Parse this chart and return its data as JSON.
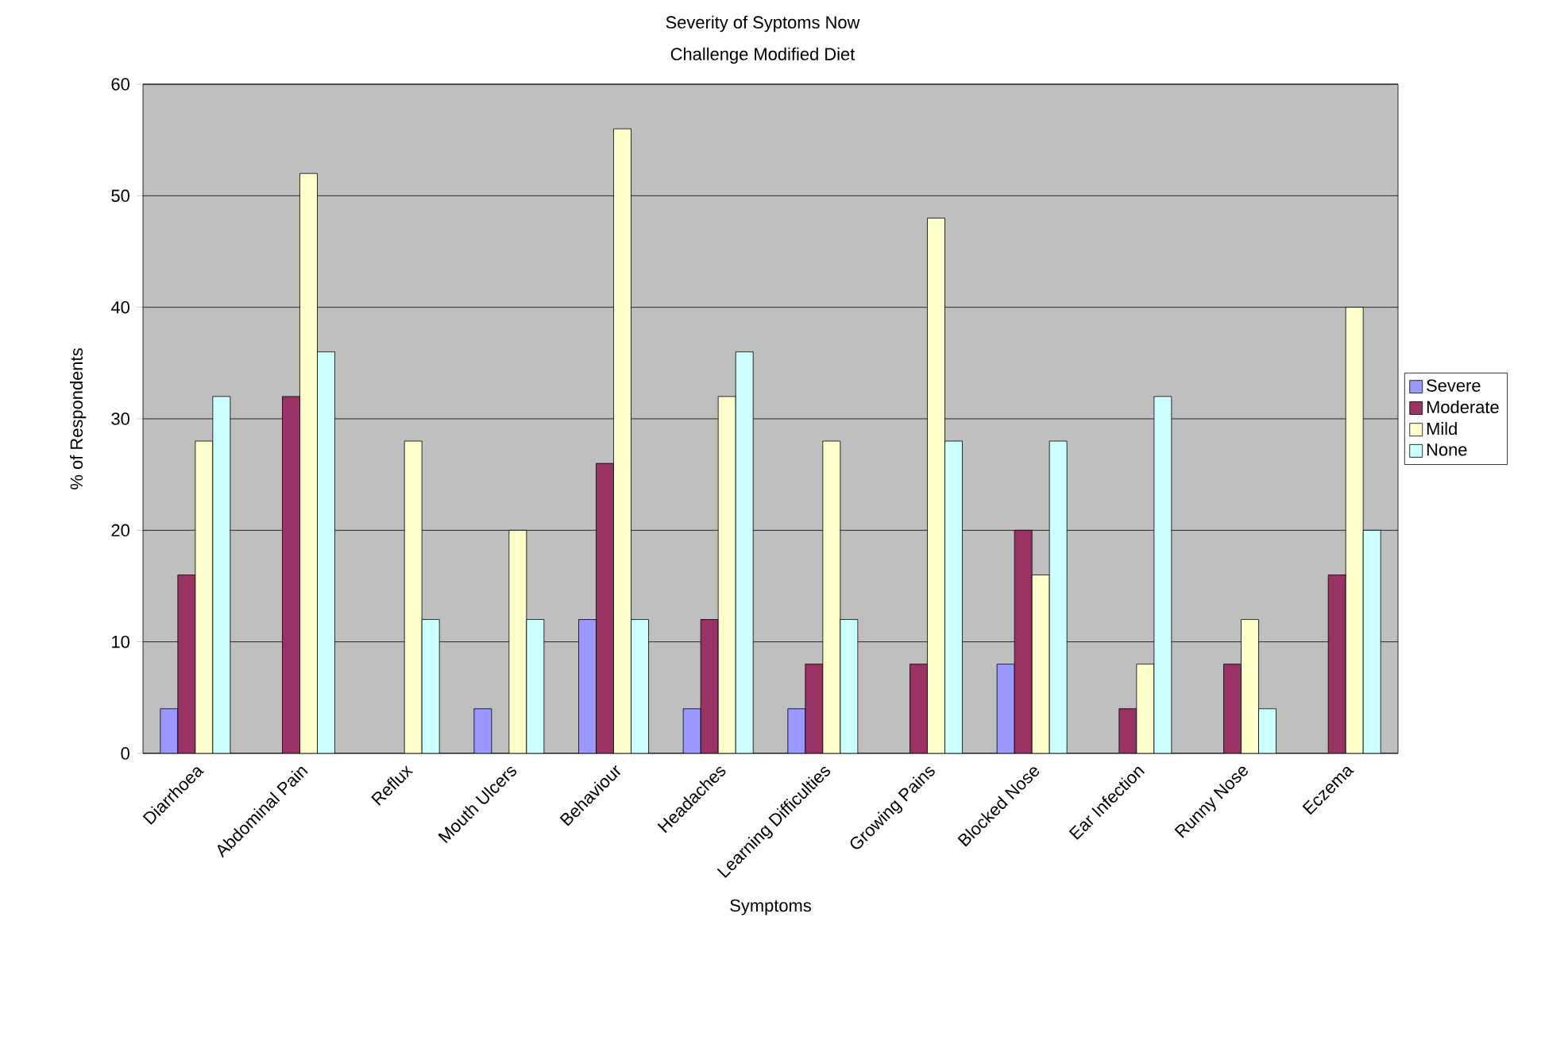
{
  "chart_data": {
    "type": "bar",
    "title": "Severity of Syptoms Now",
    "subtitle": "Challenge Modified Diet",
    "xlabel": "Symptoms",
    "ylabel": "% of Respondents",
    "categories": [
      "Diarrhoea",
      "Abdominal Pain",
      "Reflux",
      "Mouth Ulcers",
      "Behaviour",
      "Headaches",
      "Learning Difficulties",
      "Growing Pains",
      "Blocked Nose",
      "Ear Infection",
      "Runny Nose",
      "Eczema"
    ],
    "series": [
      {
        "name": "Severe",
        "color": "#9999ff",
        "values": [
          4,
          null,
          null,
          4,
          12,
          4,
          4,
          null,
          8,
          null,
          null,
          null
        ]
      },
      {
        "name": "Moderate",
        "color": "#993366",
        "values": [
          16,
          32,
          null,
          null,
          26,
          12,
          8,
          8,
          20,
          4,
          8,
          16
        ]
      },
      {
        "name": "Mild",
        "color": "#ffffcc",
        "values": [
          28,
          52,
          28,
          20,
          56,
          32,
          28,
          48,
          16,
          8,
          12,
          40
        ]
      },
      {
        "name": "None",
        "color": "#ccffff",
        "values": [
          32,
          36,
          12,
          12,
          12,
          36,
          12,
          28,
          28,
          32,
          4,
          20
        ]
      }
    ],
    "ylim": [
      0,
      60
    ],
    "yticks": [
      0,
      10,
      20,
      30,
      40,
      50,
      60
    ],
    "grid": "y",
    "legend": "right"
  }
}
